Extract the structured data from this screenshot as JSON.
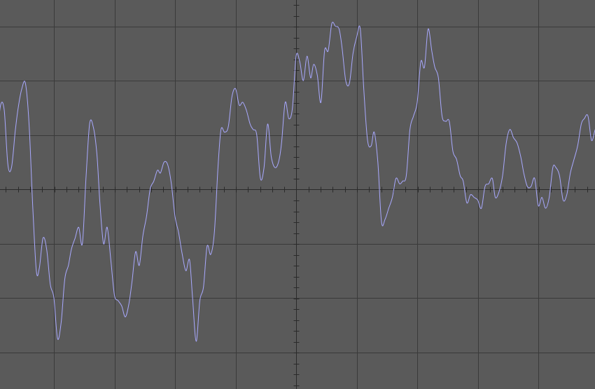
{
  "chart_data": {
    "type": "line",
    "title": "",
    "xlabel": "",
    "ylabel": "",
    "grid": true,
    "divisions": {
      "x": 10,
      "y": 7
    },
    "xlim": [
      -5,
      5
    ],
    "ylim": [
      -3.5,
      3.5
    ],
    "colors": {
      "background": "#5a5a5a",
      "grid": "#3a3a3a",
      "axis": "#2a2a2a",
      "trace": "#a9a9ff"
    },
    "series": [
      {
        "name": "",
        "x": [
          -5.0,
          -4.94,
          -4.88,
          -4.82,
          -4.76,
          -4.7,
          -4.64,
          -4.59,
          -4.53,
          -4.47,
          -4.41,
          -4.35,
          -4.29,
          -4.24,
          -4.18,
          -4.12,
          -4.06,
          -4.0,
          -3.94,
          -3.88,
          -3.82,
          -3.76,
          -3.71,
          -3.65,
          -3.59,
          -3.53,
          -3.47,
          -3.41,
          -3.35,
          -3.29,
          -3.24,
          -3.18,
          -3.12,
          -3.06,
          -3.0,
          -2.94,
          -2.88,
          -2.82,
          -2.76,
          -2.71,
          -2.65,
          -2.59,
          -2.53,
          -2.47,
          -2.41,
          -2.35,
          -2.29,
          -2.24,
          -2.18,
          -2.12,
          -2.06,
          -2.0,
          -1.94,
          -1.88,
          -1.82,
          -1.76,
          -1.71,
          -1.65,
          -1.59,
          -1.53,
          -1.47,
          -1.41,
          -1.35,
          -1.29,
          -1.24,
          -1.18,
          -1.12,
          -1.06,
          -1.0,
          -0.94,
          -0.88,
          -0.82,
          -0.76,
          -0.71,
          -0.65,
          -0.59,
          -0.53,
          -0.47,
          -0.41,
          -0.35,
          -0.29,
          -0.24,
          -0.18,
          -0.12,
          -0.06,
          0.0,
          0.06,
          0.12,
          0.18,
          0.24,
          0.29,
          0.35,
          0.41,
          0.47,
          0.53,
          0.59,
          0.65,
          0.71,
          0.76,
          0.82,
          0.88,
          0.94,
          1.0,
          1.06,
          1.12,
          1.18,
          1.24,
          1.29,
          1.35,
          1.41,
          1.47,
          1.53,
          1.59,
          1.65,
          1.71,
          1.76,
          1.82,
          1.88,
          1.94,
          2.0,
          2.06,
          2.12,
          2.18,
          2.24,
          2.29,
          2.35,
          2.41,
          2.47,
          2.53,
          2.59,
          2.65,
          2.71,
          2.76,
          2.82,
          2.88,
          2.94,
          3.0,
          3.06,
          3.12,
          3.18,
          3.24,
          3.29,
          3.35,
          3.41,
          3.47,
          3.53,
          3.59,
          3.65,
          3.71,
          3.76,
          3.82,
          3.88,
          3.94,
          4.0,
          4.06,
          4.12,
          4.18,
          4.24,
          4.29,
          4.35,
          4.41,
          4.47,
          4.53,
          4.59,
          4.65,
          4.71,
          4.76,
          4.82,
          4.88,
          4.94,
          5.0
        ],
        "y": [
          0.7,
          0.95,
          1.55,
          1.45,
          0.45,
          0.4,
          1.05,
          1.5,
          1.85,
          1.95,
          1.2,
          -0.3,
          -1.5,
          -1.45,
          -0.9,
          -1.1,
          -1.75,
          -2.0,
          -2.75,
          -2.45,
          -1.65,
          -1.4,
          -1.1,
          -0.9,
          -0.7,
          -1.0,
          0.2,
          1.2,
          1.15,
          0.65,
          -0.25,
          -1.0,
          -0.7,
          -1.3,
          -1.95,
          -2.05,
          -2.15,
          -2.35,
          -2.1,
          -1.7,
          -1.15,
          -1.4,
          -0.85,
          -0.5,
          0.0,
          0.15,
          0.35,
          0.3,
          0.5,
          0.45,
          0.1,
          -0.5,
          -0.8,
          -1.2,
          -1.5,
          -1.3,
          -2.0,
          -2.8,
          -2.05,
          -1.8,
          -1.05,
          -1.2,
          -0.8,
          0.4,
          1.1,
          1.05,
          1.15,
          1.7,
          1.85,
          1.55,
          1.6,
          1.45,
          1.2,
          1.1,
          1.0,
          0.2,
          0.4,
          1.2,
          0.6,
          0.4,
          0.5,
          0.85,
          1.6,
          1.3,
          1.5,
          2.45,
          2.35,
          2.0,
          2.45,
          2.05,
          2.3,
          2.1,
          1.6,
          2.55,
          2.55,
          3.05,
          3.0,
          2.95,
          2.6,
          2.0,
          1.95,
          2.5,
          2.8,
          2.95,
          1.8,
          0.9,
          0.8,
          1.05,
          0.5,
          -0.6,
          -0.55,
          -0.35,
          -0.15,
          0.2,
          0.1,
          0.15,
          0.25,
          1.1,
          1.35,
          1.6,
          2.35,
          2.25,
          2.95,
          2.55,
          2.25,
          2.05,
          1.35,
          1.25,
          1.25,
          0.7,
          0.55,
          0.25,
          0.15,
          -0.25,
          -0.1,
          -0.15,
          -0.2,
          -0.35,
          0.05,
          0.1,
          0.2,
          -0.15,
          -0.05,
          0.25,
          0.85,
          1.1,
          0.95,
          0.85,
          0.6,
          0.3,
          0.05,
          0.05,
          0.2,
          -0.3,
          -0.15,
          -0.35,
          -0.15,
          0.4,
          0.4,
          0.25,
          -0.2,
          -0.1,
          0.3,
          0.55,
          0.8,
          1.2,
          1.3,
          1.35,
          0.9,
          1.1,
          1.15
        ]
      }
    ]
  }
}
